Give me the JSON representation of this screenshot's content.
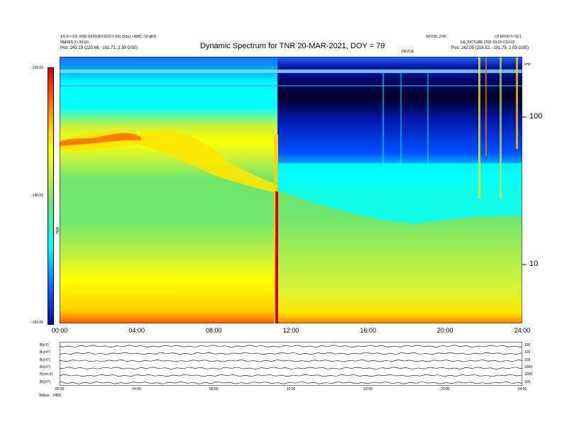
{
  "header": {
    "title": "Dynamic Spectrum for TNR 20-MAR-2021, DOY = 79",
    "left_lines": [
      "1/S.0 • ICE (D0E:GF0S3E0 ED3 0 E0) (SSe) • AMIC D0 gRS",
      "MgFIES 3 • 50:E0",
      "Pos:   242.19 (220.68, -101.71, 2.39 GSE)"
    ],
    "right_lines": [
      "NFOSC.2:40",
      "LD:EFOOT• 50.1",
      "SIS_FICTURE 2021-03-20 C03:03",
      "Pos:   242.05 (216.52, -101.75, 2.03 GSE)"
    ],
    "mark_label": "DEVCE"
  },
  "chart_data": {
    "type": "heatmap",
    "title": "Dynamic Spectrum for TNR 20-MAR-2021, DOY = 79",
    "x_ticks": [
      "00:00",
      "04:00",
      "08:00",
      "12:00",
      "16:00",
      "20:00",
      "24:00"
    ],
    "x_range_hours": [
      0,
      24
    ],
    "y_right_ticks": [
      "100",
      "10"
    ],
    "y_right_extra_label": "kHz",
    "y_scale": "log",
    "colorbar_ticks": [
      "-125.00",
      "-140.00",
      "-155.00"
    ],
    "colorbar_label": "TNR",
    "colorbar_range": [
      -155,
      -125
    ],
    "colors": {
      "red": "#d40000",
      "orange": "#ff8000",
      "yellow": "#ffff00",
      "yellow_green": "#c8f23c",
      "green": "#6ee66e",
      "cyan": "#00ffff",
      "blue": "#0064ff",
      "dark_blue": "#0010a0",
      "black": "#000020"
    },
    "event_time_hours": 11.3
  },
  "stack": {
    "rows": [
      {
        "label": "B(nT)",
        "right": "100"
      },
      {
        "label": "Bx(nT)",
        "right": "100"
      },
      {
        "label": "By(nT)",
        "right": "100"
      },
      {
        "label": "Bz(nT)",
        "right": "1000"
      },
      {
        "label": "N(cm-3)",
        "right": "1000"
      },
      {
        "label": "|B|(nT)",
        "right": "100"
      }
    ],
    "x_ticks": [
      "00:00",
      "04:00",
      "08:00",
      "12:00",
      "16:00",
      "20:00",
      "24:00"
    ],
    "footer_left": "Status:",
    "footer_unit": "HMS"
  }
}
